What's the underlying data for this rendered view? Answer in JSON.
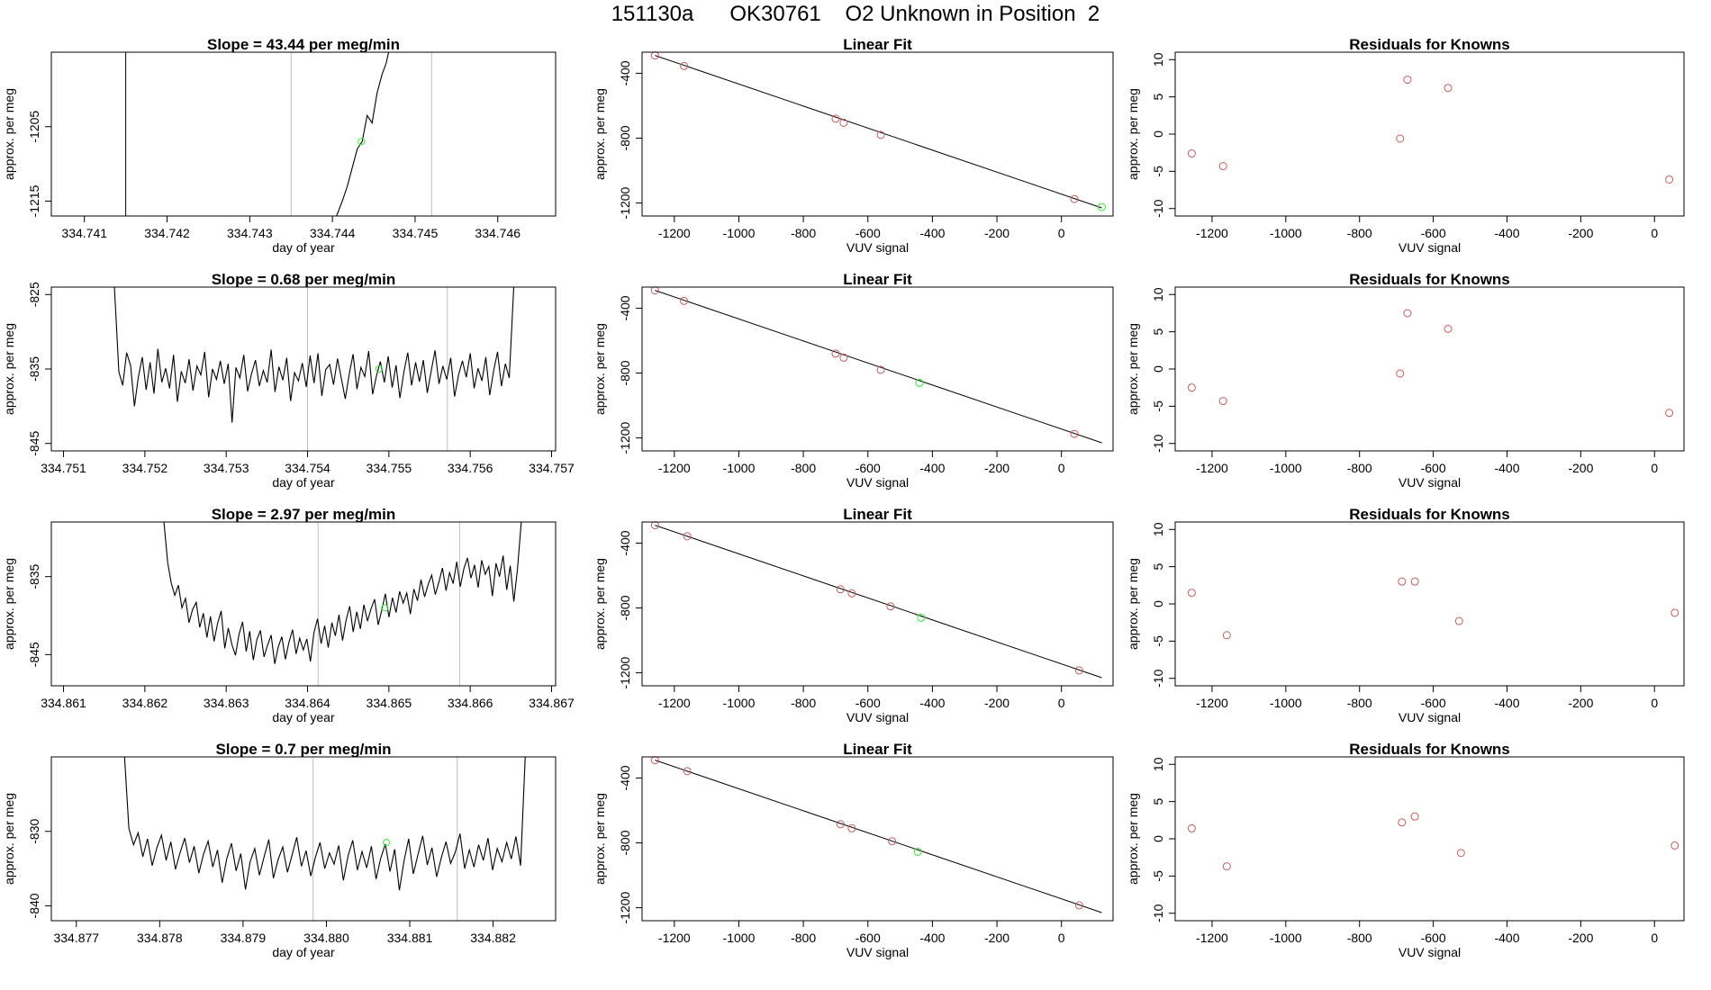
{
  "figure": {
    "title": "151130a      OK30761    O2 Unknown in Position  2"
  },
  "colors": {
    "trace": "#000000",
    "divider": "#bebebe",
    "known_point": "#cd5c5c",
    "unknown_point": "#33ee33"
  },
  "chart_data": [
    {
      "type": "line",
      "row": 0,
      "panel": "time-series",
      "title": "Slope =  43.44  per meg/min",
      "xlabel": "day of year",
      "ylabel": "approx. per meg",
      "xlim": [
        334.7406,
        334.7467
      ],
      "ylim": [
        -1217,
        -1195
      ],
      "xticks": [
        "334.741",
        "334.742",
        "334.743",
        "334.744",
        "334.745",
        "334.746"
      ],
      "xtick_values": [
        334.741,
        334.742,
        334.743,
        334.744,
        334.745,
        334.746
      ],
      "yticks": [
        "-1205",
        "-1215"
      ],
      "ytick_values": [
        -1205,
        -1215
      ],
      "dividers_black": [
        334.7415
      ],
      "dividers_grey": [
        334.7435,
        334.7452
      ],
      "series_x": [
        334.74405,
        334.74412,
        334.74418,
        334.74424,
        334.7443,
        334.74436,
        334.74442,
        334.74448,
        334.74454,
        334.7446,
        334.74465,
        334.7447
      ],
      "series_y": [
        -1217,
        -1215,
        -1213,
        -1210.5,
        -1208,
        -1207,
        -1203.5,
        -1204.5,
        -1200.5,
        -1198,
        -1196.5,
        -1194
      ],
      "marker": {
        "x": 334.74435,
        "y": -1207
      }
    },
    {
      "type": "scatter",
      "row": 0,
      "panel": "linear-fit",
      "title": "Linear Fit",
      "xlabel": "VUV signal",
      "ylabel": "approx. per meg",
      "xlim": [
        -1300,
        160
      ],
      "ylim": [
        -1280,
        -270
      ],
      "xticks": [
        "-1200",
        "-1000",
        "-800",
        "-600",
        "-400",
        "-200",
        "0"
      ],
      "xtick_values": [
        -1200,
        -1000,
        -800,
        -600,
        -400,
        -200,
        0
      ],
      "yticks": [
        "-400",
        "-800",
        "-1200"
      ],
      "ytick_values": [
        -400,
        -800,
        -1200
      ],
      "fit_line": {
        "x": [
          -1260,
          125
        ],
        "y": [
          -290,
          -1230
        ]
      },
      "known_x": [
        -1260,
        -1170,
        -700,
        -675,
        -560,
        40
      ],
      "known_y": [
        -290,
        -355,
        -680,
        -705,
        -780,
        -1175
      ],
      "unknown": {
        "x": 125,
        "y": -1225
      }
    },
    {
      "type": "scatter",
      "row": 0,
      "panel": "residuals",
      "title": "Residuals for Knowns",
      "xlabel": "VUV signal",
      "ylabel": "approx. per meg",
      "xlim": [
        -1300,
        80
      ],
      "ylim": [
        -11,
        11
      ],
      "xticks": [
        "-1200",
        "-1000",
        "-800",
        "-600",
        "-400",
        "-200",
        "0"
      ],
      "xtick_values": [
        -1200,
        -1000,
        -800,
        -600,
        -400,
        -200,
        0
      ],
      "yticks": [
        "-10",
        "-5",
        "0",
        "5",
        "10"
      ],
      "ytick_values": [
        -10,
        -5,
        0,
        5,
        10
      ],
      "x": [
        -1255,
        -1170,
        -690,
        -670,
        -560,
        40
      ],
      "y": [
        -2.6,
        -4.3,
        -0.6,
        7.3,
        6.2,
        -6.1
      ]
    },
    {
      "type": "line",
      "row": 1,
      "panel": "time-series",
      "title": "Slope =  0.68  per meg/min",
      "xlabel": "day of year",
      "ylabel": "approx. per meg",
      "xlim": [
        334.75085,
        334.75705
      ],
      "ylim": [
        -846,
        -824
      ],
      "xticks": [
        "334.751",
        "334.752",
        "334.753",
        "334.754",
        "334.755",
        "334.756",
        "334.757"
      ],
      "xtick_values": [
        334.751,
        334.752,
        334.753,
        334.754,
        334.755,
        334.756,
        334.757
      ],
      "yticks": [
        "-825",
        "-835",
        "-845"
      ],
      "ytick_values": [
        -825,
        -835,
        -845
      ],
      "dividers_black": [],
      "dividers_grey": [
        334.754,
        334.75572
      ],
      "series_x": [
        334.75168,
        334.75648
      ],
      "series_y": [
        -835.4,
        -837.2,
        -832.8,
        -834.5,
        -840.0,
        -836.1,
        -833.4,
        -837.8,
        -834.1,
        -838.3,
        -832.3,
        -836.8,
        -834.9,
        -837.6,
        -833.1,
        -839.4,
        -835.3,
        -836.9,
        -833.7,
        -837.9,
        -834.6,
        -835.8,
        -832.7,
        -838.8,
        -835.0,
        -836.4,
        -833.9,
        -837.0,
        -834.3,
        -842.2,
        -834.8,
        -836.2,
        -833.1,
        -838.0,
        -835.6,
        -833.8,
        -837.3,
        -835.2,
        -836.8,
        -832.4,
        -838.1,
        -834.7,
        -836.5,
        -833.5,
        -839.3,
        -835.5,
        -836.6,
        -834.2,
        -837.4,
        -833.2,
        -836.9,
        -832.9,
        -838.6,
        -835.1,
        -834.4,
        -837.1,
        -833.6,
        -836.3,
        -839.0,
        -835.7,
        -833.0,
        -837.7,
        -834.8,
        -836.0,
        -832.6,
        -838.4,
        -835.9,
        -834.0,
        -836.8,
        -833.3,
        -837.5,
        -834.5,
        -838.9,
        -835.4,
        -832.8,
        -837.2,
        -834.1,
        -836.7,
        -833.8,
        -838.2,
        -835.3,
        -832.5,
        -837.0,
        -834.6,
        -836.4,
        -833.5,
        -838.7,
        -835.8,
        -833.9,
        -836.1,
        -832.9,
        -837.6,
        -834.9,
        -836.6,
        -833.4,
        -838.5,
        -835.2,
        -832.7,
        -837.3,
        -834.3,
        -836.2
      ],
      "marker": {
        "x": 334.75488,
        "y": -835.0
      }
    },
    {
      "type": "scatter",
      "row": 1,
      "panel": "linear-fit",
      "title": "Linear Fit",
      "xlabel": "VUV signal",
      "ylabel": "approx. per meg",
      "xlim": [
        -1300,
        160
      ],
      "ylim": [
        -1280,
        -270
      ],
      "xticks": [
        "-1200",
        "-1000",
        "-800",
        "-600",
        "-400",
        "-200",
        "0"
      ],
      "xtick_values": [
        -1200,
        -1000,
        -800,
        -600,
        -400,
        -200,
        0
      ],
      "yticks": [
        "-400",
        "-800",
        "-1200"
      ],
      "ytick_values": [
        -400,
        -800,
        -1200
      ],
      "fit_line": {
        "x": [
          -1260,
          125
        ],
        "y": [
          -290,
          -1230
        ]
      },
      "known_x": [
        -1260,
        -1170,
        -700,
        -675,
        -560,
        40
      ],
      "known_y": [
        -290,
        -355,
        -680,
        -705,
        -780,
        -1175
      ],
      "unknown": {
        "x": -440,
        "y": -860
      }
    },
    {
      "type": "scatter",
      "row": 1,
      "panel": "residuals",
      "title": "Residuals for Knowns",
      "xlabel": "VUV signal",
      "ylabel": "approx. per meg",
      "xlim": [
        -1300,
        80
      ],
      "ylim": [
        -11,
        11
      ],
      "xticks": [
        "-1200",
        "-1000",
        "-800",
        "-600",
        "-400",
        "-200",
        "0"
      ],
      "xtick_values": [
        -1200,
        -1000,
        -800,
        -600,
        -400,
        -200,
        0
      ],
      "yticks": [
        "-10",
        "-5",
        "0",
        "5",
        "10"
      ],
      "ytick_values": [
        -10,
        -5,
        0,
        5,
        10
      ],
      "x": [
        -1255,
        -1170,
        -690,
        -670,
        -560,
        40
      ],
      "y": [
        -2.5,
        -4.3,
        -0.6,
        7.5,
        5.4,
        -5.9
      ]
    },
    {
      "type": "line",
      "row": 2,
      "panel": "time-series",
      "title": "Slope =  2.97  per meg/min",
      "xlabel": "day of year",
      "ylabel": "approx. per meg",
      "xlim": [
        334.86085,
        334.86705
      ],
      "ylim": [
        -849,
        -828
      ],
      "xticks": [
        "334.861",
        "334.862",
        "334.863",
        "334.864",
        "334.865",
        "334.866",
        "334.867"
      ],
      "xtick_values": [
        334.861,
        334.862,
        334.863,
        334.864,
        334.865,
        334.866,
        334.867
      ],
      "yticks": [
        "-835",
        "-845"
      ],
      "ytick_values": [
        -835,
        -845
      ],
      "dividers_black": [],
      "dividers_grey": [
        334.86413,
        334.86587
      ],
      "series_x": [
        334.86228,
        334.86658
      ],
      "series_y": [
        -833.2,
        -835.8,
        -837.4,
        -836.1,
        -839.0,
        -837.8,
        -840.9,
        -839.2,
        -838.3,
        -841.5,
        -839.7,
        -842.8,
        -840.1,
        -843.3,
        -841.0,
        -839.4,
        -844.2,
        -841.6,
        -843.7,
        -845.1,
        -842.4,
        -840.8,
        -844.6,
        -842.0,
        -845.7,
        -843.1,
        -841.9,
        -845.3,
        -843.8,
        -842.5,
        -846.2,
        -844.0,
        -842.7,
        -845.6,
        -843.4,
        -841.8,
        -844.9,
        -842.9,
        -844.4,
        -843.0,
        -845.9,
        -842.2,
        -840.4,
        -843.6,
        -841.3,
        -844.1,
        -840.9,
        -842.6,
        -839.9,
        -843.2,
        -840.6,
        -838.8,
        -842.1,
        -839.5,
        -841.7,
        -838.6,
        -840.7,
        -839.1,
        -837.9,
        -841.2,
        -839.3,
        -837.2,
        -840.2,
        -837.7,
        -839.6,
        -836.9,
        -838.4,
        -837.1,
        -839.8,
        -836.6,
        -838.1,
        -835.4,
        -837.6,
        -836.0,
        -834.8,
        -837.3,
        -835.7,
        -833.9,
        -836.8,
        -834.5,
        -835.9,
        -833.1,
        -836.3,
        -834.0,
        -832.6,
        -835.2,
        -833.5,
        -836.4,
        -832.9,
        -834.7,
        -833.7,
        -837.5,
        -833.3,
        -835.0,
        -832.3,
        -836.7,
        -833.6,
        -838.2,
        -834.2
      ],
      "marker": {
        "x": 334.86495,
        "y": -839.0
      }
    },
    {
      "type": "scatter",
      "row": 2,
      "panel": "linear-fit",
      "title": "Linear Fit",
      "xlabel": "VUV signal",
      "ylabel": "approx. per meg",
      "xlim": [
        -1300,
        160
      ],
      "ylim": [
        -1280,
        -270
      ],
      "xticks": [
        "-1200",
        "-1000",
        "-800",
        "-600",
        "-400",
        "-200",
        "0"
      ],
      "xtick_values": [
        -1200,
        -1000,
        -800,
        -600,
        -400,
        -200,
        0
      ],
      "yticks": [
        "-400",
        "-800",
        "-1200"
      ],
      "ytick_values": [
        -400,
        -800,
        -1200
      ],
      "fit_line": {
        "x": [
          -1260,
          125
        ],
        "y": [
          -290,
          -1230
        ]
      },
      "known_x": [
        -1260,
        -1160,
        -685,
        -650,
        -530,
        55
      ],
      "known_y": [
        -290,
        -358,
        -685,
        -710,
        -790,
        -1185
      ],
      "unknown": {
        "x": -435,
        "y": -860
      }
    },
    {
      "type": "scatter",
      "row": 2,
      "panel": "residuals",
      "title": "Residuals for Knowns",
      "xlabel": "VUV signal",
      "ylabel": "approx. per meg",
      "xlim": [
        -1300,
        80
      ],
      "ylim": [
        -11,
        11
      ],
      "xticks": [
        "-1200",
        "-1000",
        "-800",
        "-600",
        "-400",
        "-200",
        "0"
      ],
      "xtick_values": [
        -1200,
        -1000,
        -800,
        -600,
        -400,
        -200,
        0
      ],
      "yticks": [
        "-10",
        "-5",
        "0",
        "5",
        "10"
      ],
      "ytick_values": [
        -10,
        -5,
        0,
        5,
        10
      ],
      "x": [
        -1255,
        -1160,
        -685,
        -650,
        -530,
        55
      ],
      "y": [
        1.5,
        -4.2,
        3.0,
        3.0,
        -2.3,
        -1.2
      ]
    },
    {
      "type": "line",
      "row": 3,
      "panel": "time-series",
      "title": "Slope =  0.7  per meg/min",
      "xlabel": "day of year",
      "ylabel": "approx. per meg",
      "xlim": [
        334.8767,
        334.88275
      ],
      "ylim": [
        -842,
        -820
      ],
      "xticks": [
        "334.877",
        "334.878",
        "334.879",
        "334.880",
        "334.881",
        "334.882"
      ],
      "xtick_values": [
        334.877,
        334.878,
        334.879,
        334.88,
        334.881,
        334.882
      ],
      "yticks": [
        "-830",
        "-840"
      ],
      "ytick_values": [
        -830,
        -840
      ],
      "dividers_black": [],
      "dividers_grey": [
        334.87984,
        334.88157
      ],
      "series_x": [
        334.87763,
        334.88233
      ],
      "series_y": [
        -829.6,
        -831.8,
        -830.2,
        -833.4,
        -831.0,
        -834.6,
        -832.2,
        -830.5,
        -833.9,
        -831.4,
        -835.1,
        -832.8,
        -830.9,
        -834.2,
        -832.0,
        -835.6,
        -833.1,
        -831.3,
        -834.8,
        -832.5,
        -836.9,
        -833.7,
        -831.6,
        -835.3,
        -833.0,
        -837.8,
        -834.1,
        -832.3,
        -835.9,
        -833.4,
        -831.1,
        -836.3,
        -833.8,
        -832.1,
        -835.5,
        -833.2,
        -830.8,
        -834.7,
        -832.6,
        -836.0,
        -833.5,
        -831.5,
        -835.0,
        -832.9,
        -834.4,
        -831.9,
        -836.6,
        -833.3,
        -831.2,
        -835.2,
        -832.7,
        -834.9,
        -832.0,
        -836.4,
        -833.6,
        -831.7,
        -835.4,
        -832.4,
        -837.9,
        -834.0,
        -831.0,
        -835.7,
        -833.1,
        -830.6,
        -834.5,
        -832.2,
        -836.1,
        -833.5,
        -831.4,
        -834.3,
        -832.8,
        -830.3,
        -835.0,
        -832.5,
        -834.8,
        -831.8,
        -833.9,
        -830.9,
        -835.2,
        -832.3,
        -834.1,
        -831.5,
        -833.7,
        -830.7,
        -834.6
      ],
      "marker": {
        "x": 334.88072,
        "y": -831.5
      }
    },
    {
      "type": "scatter",
      "row": 3,
      "panel": "linear-fit",
      "title": "Linear Fit",
      "xlabel": "VUV signal",
      "ylabel": "approx. per meg",
      "xlim": [
        -1300,
        160
      ],
      "ylim": [
        -1280,
        -270
      ],
      "xticks": [
        "-1200",
        "-1000",
        "-800",
        "-600",
        "-400",
        "-200",
        "0"
      ],
      "xtick_values": [
        -1200,
        -1000,
        -800,
        -600,
        -400,
        -200,
        0
      ],
      "yticks": [
        "-400",
        "-800",
        "-1200"
      ],
      "ytick_values": [
        -400,
        -800,
        -1200
      ],
      "fit_line": {
        "x": [
          -1260,
          125
        ],
        "y": [
          -290,
          -1230
        ]
      },
      "known_x": [
        -1260,
        -1160,
        -685,
        -650,
        -525,
        55
      ],
      "known_y": [
        -290,
        -358,
        -685,
        -710,
        -790,
        -1185
      ],
      "unknown": {
        "x": -445,
        "y": -855
      }
    },
    {
      "type": "scatter",
      "row": 3,
      "panel": "residuals",
      "title": "Residuals for Knowns",
      "xlabel": "VUV signal",
      "ylabel": "approx. per meg",
      "xlim": [
        -1300,
        80
      ],
      "ylim": [
        -11,
        11
      ],
      "xticks": [
        "-1200",
        "-1000",
        "-800",
        "-600",
        "-400",
        "-200",
        "0"
      ],
      "xtick_values": [
        -1200,
        -1000,
        -800,
        -600,
        -400,
        -200,
        0
      ],
      "yticks": [
        "-10",
        "-5",
        "0",
        "5",
        "10"
      ],
      "ytick_values": [
        -10,
        -5,
        0,
        5,
        10
      ],
      "x": [
        -1255,
        -1160,
        -685,
        -650,
        -525,
        55
      ],
      "y": [
        1.4,
        -3.7,
        2.2,
        3.0,
        -1.9,
        -0.9
      ]
    }
  ]
}
